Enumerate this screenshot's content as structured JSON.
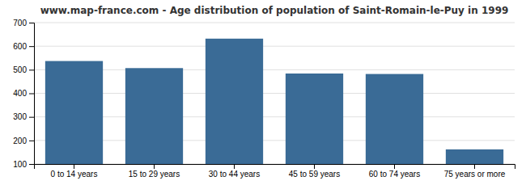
{
  "chart_data": {
    "type": "bar",
    "title": "www.map-france.com - Age distribution of population of Saint-Romain-le-Puy in 1999",
    "categories": [
      "0 to 14 years",
      "15 to 29 years",
      "30 to 44 years",
      "45 to 59 years",
      "60 to 74 years",
      "75 years or more"
    ],
    "values": [
      537,
      507,
      632,
      484,
      482,
      162
    ],
    "color": "#3a6b96",
    "ylim": [
      100,
      700
    ],
    "yticks": [
      100,
      200,
      300,
      400,
      500,
      600,
      700
    ],
    "grid": true
  }
}
